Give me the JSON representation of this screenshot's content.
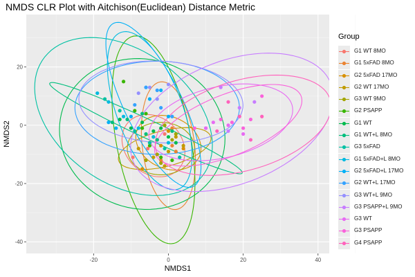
{
  "chart_data": {
    "type": "scatter",
    "title": "NMDS CLR Plot with Aitchison(Euclidean) Distance Metric",
    "xlabel": "NMDS1",
    "ylabel": "NMDS2",
    "xlim": [
      -38,
      43
    ],
    "ylim": [
      -44,
      38
    ],
    "xticks": [
      -20,
      0,
      20,
      40
    ],
    "yticks": [
      -40,
      -20,
      0,
      20
    ],
    "xtick_labels": [
      "-20",
      "0",
      "20",
      "40"
    ],
    "ytick_labels": [
      "-40",
      "-20",
      "0",
      "20"
    ],
    "grid": true,
    "legend_title": "Group",
    "legend_position": "right",
    "series": [
      {
        "name": "G1 WT 8MO",
        "color": "#F8766D",
        "points": [
          [
            -9.5,
            -11
          ],
          [
            -5.5,
            -8
          ],
          [
            -3,
            -5
          ],
          [
            -1,
            -3
          ]
        ],
        "ellipse": {
          "cx": -4,
          "cy": -7,
          "rx": 8,
          "ry": 11,
          "angle": 20
        }
      },
      {
        "name": "G1 5xFAD 8MO",
        "color": "#EA8331",
        "points": [
          [
            -2,
            -12
          ],
          [
            1,
            -7
          ],
          [
            2,
            -9
          ],
          [
            -4,
            -4
          ],
          [
            1,
            -1
          ]
        ],
        "ellipse": {
          "cx": 0,
          "cy": -7,
          "rx": 7,
          "ry": 22,
          "angle": 5
        }
      },
      {
        "name": "G2 5xFAD 17MO",
        "color": "#D89000",
        "points": [
          [
            -5,
            -6
          ],
          [
            -2,
            -7
          ],
          [
            0,
            -2
          ],
          [
            4,
            -8
          ],
          [
            -7,
            -15
          ]
        ],
        "ellipse": {
          "cx": 0,
          "cy": -6,
          "rx": 8,
          "ry": 10,
          "angle": 35
        }
      },
      {
        "name": "G2 WT 17MO",
        "color": "#C09B00",
        "points": [
          [
            -8,
            -8
          ],
          [
            -4,
            -11
          ],
          [
            -1,
            -14
          ],
          [
            2,
            -4
          ],
          [
            4,
            -7
          ],
          [
            0,
            -9
          ]
        ],
        "ellipse": {
          "cx": -1,
          "cy": -8,
          "rx": 13,
          "ry": 6,
          "angle": 20
        }
      },
      {
        "name": "G3 WT 9MO",
        "color": "#A3A500",
        "points": [
          [
            -6,
            -12
          ],
          [
            -2,
            -13
          ],
          [
            -3,
            -10
          ],
          [
            1,
            -5
          ],
          [
            -1,
            0
          ],
          [
            2,
            -3
          ]
        ],
        "ellipse": {
          "cx": -2,
          "cy": -8,
          "rx": 9,
          "ry": 9,
          "angle": 0
        }
      },
      {
        "name": "G2 PSAPP",
        "color": "#39B600",
        "points": [
          [
            -12,
            15
          ],
          [
            -9,
            5
          ],
          [
            -7,
            -1
          ],
          [
            -5,
            -7
          ],
          [
            -2,
            -11
          ],
          [
            1,
            -12
          ],
          [
            -6,
            4
          ]
        ],
        "ellipse": {
          "cx": -4,
          "cy": -5,
          "rx": 10,
          "ry": 36,
          "angle": 8
        }
      },
      {
        "name": "G1 WT",
        "color": "#00BB4E",
        "points": [
          [
            -13,
            2
          ],
          [
            -10,
            -1
          ],
          [
            -7,
            1
          ],
          [
            -4,
            -2
          ],
          [
            0,
            -4
          ],
          [
            2,
            -6
          ],
          [
            -2,
            -1
          ]
        ],
        "ellipse": {
          "cx": -7,
          "cy": -3,
          "rx": 22,
          "ry": 26,
          "angle": 10
        }
      },
      {
        "name": "G1 WT+L 8MO",
        "color": "#00BF7D",
        "points": [
          [
            -15,
            1
          ],
          [
            -11,
            2
          ],
          [
            -7,
            4
          ],
          [
            -6,
            -3
          ],
          [
            -3,
            -5
          ],
          [
            1,
            -2
          ]
        ],
        "ellipse": {
          "cx": -6,
          "cy": -1,
          "rx": 30,
          "ry": 3,
          "angle": -31
        }
      },
      {
        "name": "G3 5xFAD",
        "color": "#00C1A3",
        "points": [
          [
            -17,
            9
          ],
          [
            -13,
            5
          ],
          [
            -9,
            -2
          ],
          [
            -5,
            -6
          ],
          [
            -1,
            -8
          ],
          [
            3,
            -11
          ]
        ],
        "ellipse": {
          "cx": -12,
          "cy": 3,
          "rx": 30,
          "ry": 20,
          "angle": -55
        }
      },
      {
        "name": "G1 5xFAD+L 8MO",
        "color": "#00BAE0",
        "points": [
          [
            -19,
            11
          ],
          [
            -16,
            8
          ],
          [
            -12,
            3
          ],
          [
            -8,
            -1
          ],
          [
            -4,
            -4
          ],
          [
            0,
            -6
          ]
        ],
        "ellipse": {
          "cx": -5,
          "cy": 5,
          "rx": 9,
          "ry": 28,
          "angle": 15
        }
      },
      {
        "name": "G2 5xFAD+L 17MO",
        "color": "#00B0F6",
        "points": [
          [
            -16,
            1
          ],
          [
            -14,
            -1
          ],
          [
            -10,
            3
          ],
          [
            -5,
            9
          ],
          [
            -2,
            12
          ],
          [
            0,
            3
          ],
          [
            -6,
            13
          ]
        ],
        "ellipse": {
          "cx": -4,
          "cy": 7,
          "rx": 8,
          "ry": 30,
          "angle": 20
        }
      },
      {
        "name": "G2 WT+L 17MO",
        "color": "#35A2FF",
        "points": [
          [
            -9,
            7
          ],
          [
            -6,
            13
          ],
          [
            -3,
            12
          ],
          [
            1,
            3
          ],
          [
            -2,
            6
          ]
        ],
        "ellipse": {
          "cx": -3,
          "cy": 6,
          "rx": 22,
          "ry": 16,
          "angle": 0
        }
      },
      {
        "name": "G3 WT+L 9MO",
        "color": "#9590FF",
        "points": [
          [
            -8,
            11
          ],
          [
            -5,
            13
          ],
          [
            0,
            14
          ],
          [
            -3,
            9
          ]
        ],
        "ellipse": {
          "cx": -2,
          "cy": 8,
          "rx": 22,
          "ry": 14,
          "angle": -5
        }
      },
      {
        "name": "G3 PSAPP+L 9MO",
        "color": "#C77CFF",
        "points": [
          [
            14,
            13
          ],
          [
            19,
            6
          ],
          [
            23,
            8
          ],
          [
            10,
            -1
          ],
          [
            16,
            -2
          ]
        ],
        "ellipse": {
          "cx": 17,
          "cy": 1,
          "rx": 30,
          "ry": 20,
          "angle": 35
        }
      },
      {
        "name": "G3 WT",
        "color": "#E76BF3",
        "points": [
          [
            10,
            -1
          ],
          [
            12,
            1
          ],
          [
            16,
            0
          ],
          [
            20,
            -3
          ]
        ],
        "ellipse": {
          "cx": 14,
          "cy": 1,
          "rx": 20,
          "ry": 12,
          "angle": 20
        }
      },
      {
        "name": "G3 PSAPP",
        "color": "#FA62DB",
        "points": [
          [
            7,
            -1
          ],
          [
            14,
            2
          ],
          [
            17,
            1
          ],
          [
            22,
            2
          ],
          [
            25,
            10
          ],
          [
            20,
            -1
          ]
        ],
        "ellipse": {
          "cx": 16,
          "cy": 0,
          "rx": 22,
          "ry": 10,
          "angle": 30
        }
      },
      {
        "name": "G4 PSAPP",
        "color": "#FF62BC",
        "points": [
          [
            16,
            8
          ],
          [
            22,
            -5
          ],
          [
            19,
            3
          ],
          [
            13,
            -2
          ],
          [
            25,
            3
          ]
        ],
        "ellipse": {
          "cx": 20,
          "cy": 0,
          "rx": 25,
          "ry": 15,
          "angle": 25
        }
      }
    ]
  }
}
